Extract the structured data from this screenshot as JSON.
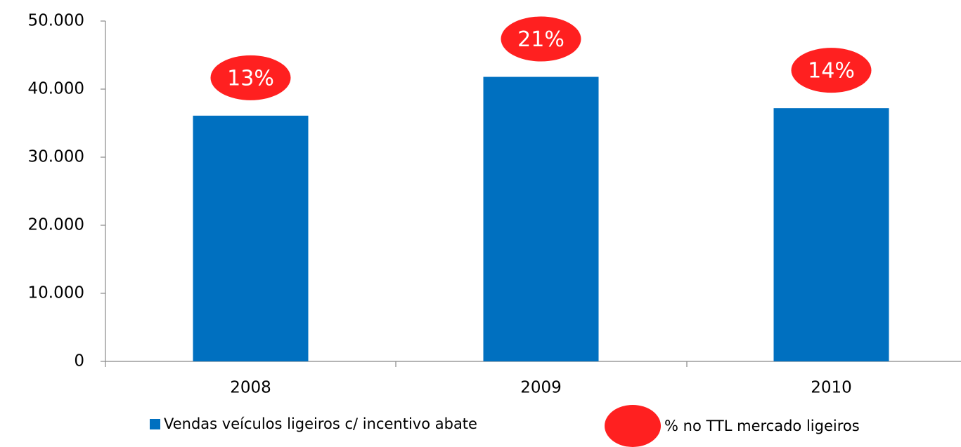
{
  "chart_data": {
    "type": "bar",
    "categories": [
      "2008",
      "2009",
      "2010"
    ],
    "series": [
      {
        "name": "Vendas veículos ligeiros c/ incentivo abate",
        "color": "#0070c0",
        "values": [
          36100,
          41800,
          37200
        ]
      },
      {
        "name": "% no TTL mercado ligeiros",
        "color": "#ff2020",
        "values": [
          13,
          21,
          14
        ],
        "value_labels": [
          "13%",
          "21%",
          "14%"
        ]
      }
    ],
    "ylim": [
      0,
      50000
    ],
    "yticks": [
      {
        "value": 0,
        "label": "0"
      },
      {
        "value": 10000,
        "label": "10.000"
      },
      {
        "value": 20000,
        "label": "20.000"
      },
      {
        "value": 30000,
        "label": "30.000"
      },
      {
        "value": 40000,
        "label": "40.000"
      },
      {
        "value": 50000,
        "label": "50.000"
      }
    ],
    "grid": false
  }
}
